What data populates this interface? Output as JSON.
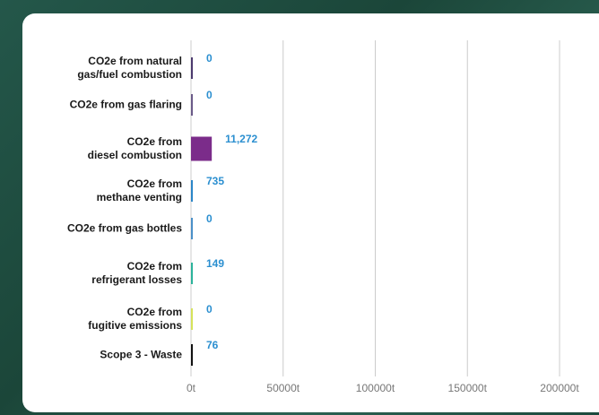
{
  "chart_data": {
    "type": "hbar",
    "categories": [
      "CO2e from natural\ngas/fuel combustion",
      "CO2e from gas flaring",
      "CO2e from\ndiesel combustion",
      "CO2e from\nmethane venting",
      "CO2e from gas bottles",
      "CO2e from\nrefrigerant losses",
      "CO2e from\nfugitive emissions",
      "Scope 3 - Waste"
    ],
    "values": [
      0,
      0,
      11272,
      735,
      0,
      149,
      0,
      76
    ],
    "value_labels": [
      "0",
      "0",
      "11,272",
      "735",
      "0",
      "149",
      "0",
      "76"
    ],
    "colors": [
      "#4b3a6e",
      "#6a5a88",
      "#7b2c8a",
      "#2b86c8",
      "#4a90c8",
      "#2cb39b",
      "#d6e35a",
      "#111111"
    ],
    "label_color": "#2b8fd0",
    "xlim": [
      0,
      200000
    ],
    "xticks": [
      {
        "value": 0,
        "label": "0t"
      },
      {
        "value": 50000,
        "label": "50000t"
      },
      {
        "value": 100000,
        "label": "100000t"
      },
      {
        "value": 150000,
        "label": "150000t"
      },
      {
        "value": 200000,
        "label": "200000t"
      }
    ],
    "grid": true
  }
}
